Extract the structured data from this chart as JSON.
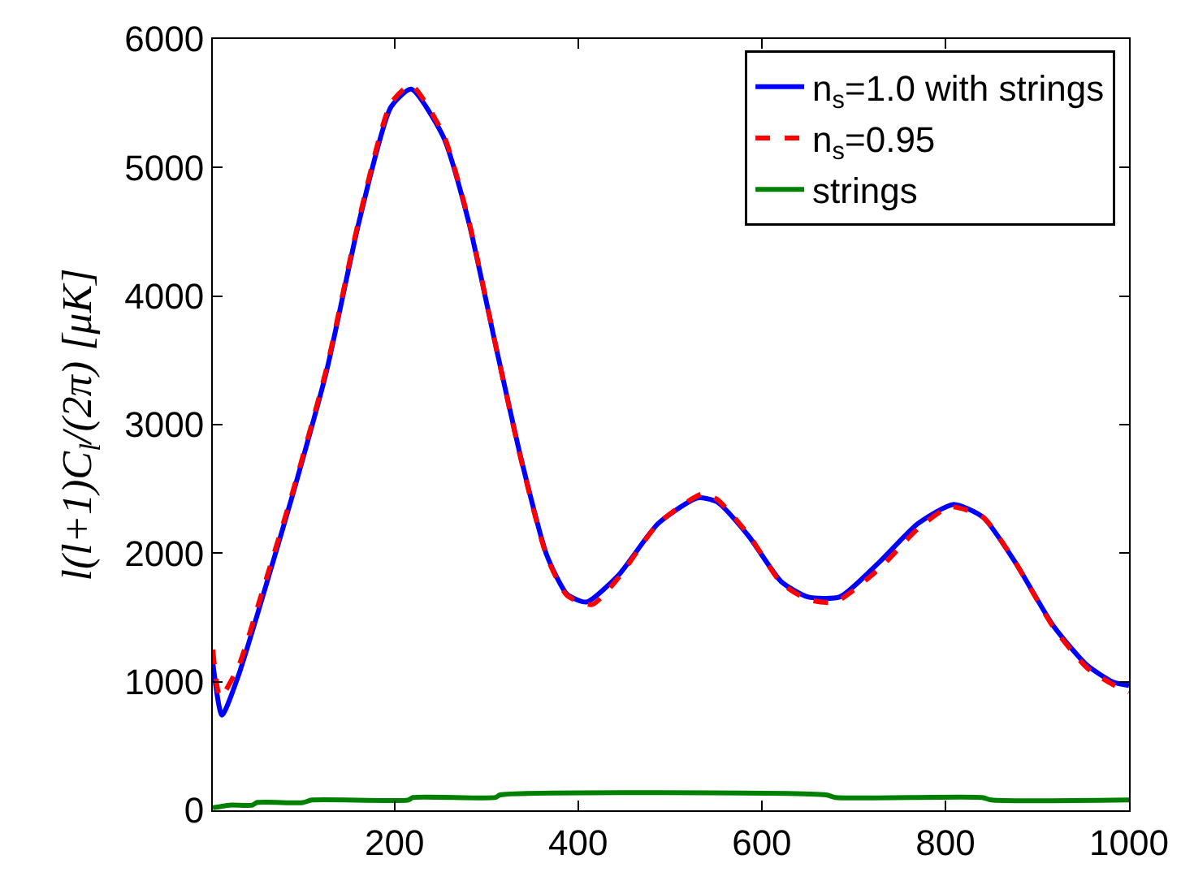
{
  "chart_data": {
    "type": "line",
    "ylabel": "l(l+1)C$_{l}$/(2π) [μK]",
    "xlim": [
      2,
      1000
    ],
    "ylim": [
      0,
      6000
    ],
    "xticks": [
      200,
      400,
      600,
      800,
      1000
    ],
    "yticks": [
      0,
      1000,
      2000,
      3000,
      4000,
      5000,
      6000
    ],
    "grid": false,
    "legend": "top right",
    "series": [
      {
        "name": "n$_{s}$=1.0 with strings",
        "color": "#0000ff",
        "line_style": "solid",
        "x": [
          2,
          12,
          30,
          55,
          90,
          126,
          161,
          196,
          218,
          253,
          281,
          310,
          338,
          366,
          388,
          409,
          444,
          487,
          530,
          551,
          586,
          621,
          650,
          685,
          728,
          770,
          809,
          841,
          876,
          918,
          954,
          982,
          1000
        ],
        "values": [
          1150,
          740,
          1050,
          1630,
          2480,
          3420,
          4570,
          5470,
          5610,
          5240,
          4570,
          3620,
          2730,
          1980,
          1680,
          1620,
          1830,
          2230,
          2430,
          2400,
          2130,
          1780,
          1660,
          1660,
          1930,
          2230,
          2380,
          2280,
          1930,
          1430,
          1130,
          1000,
          970
        ]
      },
      {
        "name": "n$_{s}$=0.95",
        "color": "#ff0000",
        "line_style": "dashed",
        "x": [
          2,
          10,
          30,
          55,
          90,
          126,
          161,
          196,
          218,
          253,
          281,
          310,
          338,
          366,
          388,
          415,
          444,
          487,
          535,
          551,
          586,
          621,
          650,
          680,
          728,
          770,
          805,
          841,
          876,
          918,
          954,
          982,
          1000
        ],
        "values": [
          1250,
          880,
          1120,
          1680,
          2500,
          3440,
          4590,
          5500,
          5640,
          5260,
          4580,
          3620,
          2720,
          1970,
          1670,
          1600,
          1810,
          2230,
          2460,
          2420,
          2140,
          1770,
          1640,
          1620,
          1880,
          2190,
          2360,
          2280,
          1930,
          1420,
          1110,
          980,
          920
        ]
      },
      {
        "name": "strings",
        "color": "#008000",
        "line_style": "solid",
        "x": [
          2,
          20,
          45,
          50,
          100,
          110,
          215,
          220,
          310,
          315,
          670,
          680,
          840,
          850,
          1000
        ],
        "values": [
          20,
          40,
          40,
          60,
          60,
          80,
          80,
          100,
          100,
          120,
          120,
          100,
          100,
          80,
          80
        ]
      }
    ]
  }
}
